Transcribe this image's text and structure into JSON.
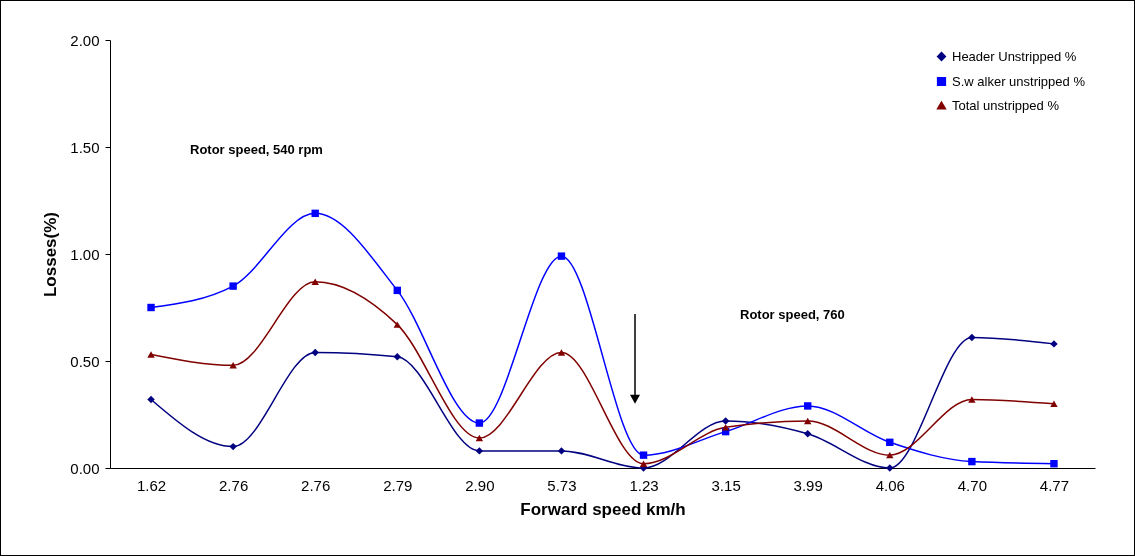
{
  "chart_data": {
    "type": "line",
    "xlabel": "Forward speed km/h",
    "ylabel": "Losses(%)",
    "categories": [
      "1.62",
      "2.76",
      "2.76",
      "2.79",
      "2.90",
      "5.73",
      "1.23",
      "3.15",
      "3.99",
      "4.06",
      "4.70",
      "4.77"
    ],
    "series": [
      {
        "name": "Header Unstripped %",
        "color": "#000080",
        "marker": "diamond",
        "values": [
          0.32,
          0.1,
          0.54,
          0.52,
          0.08,
          0.08,
          0.0,
          0.22,
          0.16,
          0.0,
          0.61,
          0.58
        ]
      },
      {
        "name": "S.w alker unstripped %",
        "color": "#0000ff",
        "marker": "square",
        "values": [
          0.75,
          0.85,
          1.19,
          0.83,
          0.21,
          0.99,
          0.06,
          0.17,
          0.29,
          0.12,
          0.03,
          0.02
        ]
      },
      {
        "name": "Total unstripped %",
        "color": "#800000",
        "marker": "triangle",
        "values": [
          0.53,
          0.48,
          0.87,
          0.67,
          0.14,
          0.54,
          0.02,
          0.19,
          0.22,
          0.06,
          0.32,
          0.3
        ]
      }
    ],
    "ylim": [
      0,
      2
    ],
    "yticks": [
      {
        "value": 0,
        "label": "0.00"
      },
      {
        "value": 0.5,
        "label": "0.50"
      },
      {
        "value": 1,
        "label": "1.00"
      },
      {
        "value": 1.5,
        "label": "1.50"
      },
      {
        "value": 2,
        "label": "2.00"
      }
    ],
    "grid": false,
    "legend": "top right",
    "line_style": "solid",
    "annotations": [
      "Rotor speed, 540 rpm",
      "Rotor speed, 760"
    ]
  }
}
